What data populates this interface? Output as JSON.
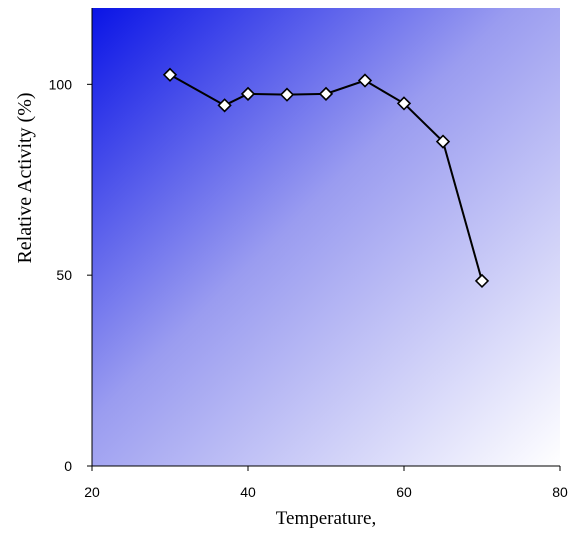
{
  "chart_data": {
    "type": "line",
    "title": "",
    "xlabel": "Temperature,",
    "ylabel": "Relative Activity (%)",
    "xlim": [
      20,
      80
    ],
    "ylim": [
      0,
      120
    ],
    "xticks": [
      20,
      40,
      60,
      80
    ],
    "yticks": [
      0,
      50,
      100
    ],
    "grid": false,
    "legend": "none",
    "background": "gradient",
    "colors": {
      "gradient_start": "#0a14e6",
      "gradient_end": "#ffffff",
      "line": "#000000",
      "marker_fill": "#ffffff",
      "marker_stroke": "#000000"
    },
    "series": [
      {
        "marker": "diamond",
        "x": [
          30,
          37,
          40,
          45,
          50,
          55,
          60,
          65,
          70
        ],
        "y": [
          102.5,
          94.5,
          97.5,
          97.3,
          97.5,
          101,
          95,
          85,
          48.5
        ]
      }
    ]
  }
}
